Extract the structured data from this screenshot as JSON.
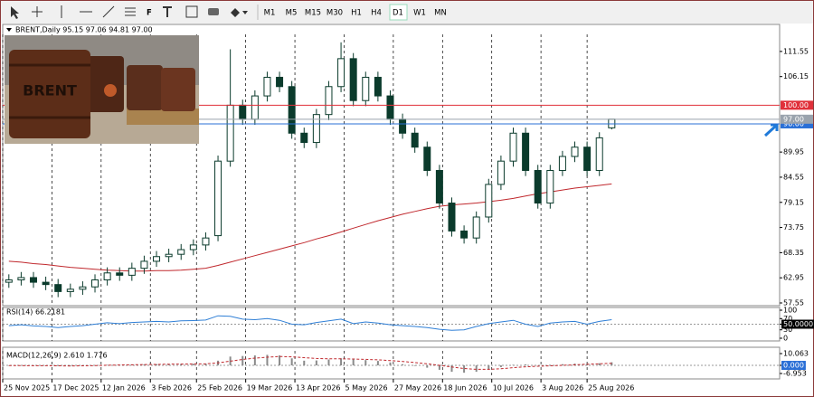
{
  "toolbar": {
    "timeframes": [
      "M1",
      "M5",
      "M15",
      "M30",
      "H1",
      "H4",
      "D1",
      "W1",
      "MN"
    ]
  },
  "chart_data": [
    {
      "type": "candlestick",
      "title": "BRENT,Daily 95.15 97.06 94.81 97.00",
      "image_text": "BRENT",
      "color": "#0b3b2c",
      "x": [
        2,
        6,
        10,
        14,
        18,
        22,
        26,
        30,
        34,
        38,
        42,
        46,
        50,
        54,
        58,
        62,
        66,
        70,
        74,
        78,
        82,
        86,
        90,
        94,
        98,
        102,
        106,
        110,
        114,
        118,
        122,
        126,
        130,
        134,
        138,
        142,
        146,
        150,
        154,
        158,
        162,
        166,
        170,
        174,
        178,
        182,
        186,
        190,
        194,
        198
      ],
      "open": [
        62.0,
        62.5,
        63.0,
        62.0,
        61.5,
        60.0,
        60.5,
        61.0,
        62.5,
        64.0,
        63.5,
        65.0,
        66.5,
        67.5,
        68.0,
        69.0,
        70.0,
        72.0,
        88.0,
        100.0,
        97.0,
        102.0,
        106.0,
        104.0,
        94.0,
        92.0,
        98.0,
        104.0,
        110.0,
        101.0,
        106.0,
        102.0,
        97.0,
        94.0,
        91.0,
        86.0,
        79.0,
        73.0,
        71.5,
        76.0,
        83.0,
        88.0,
        94.0,
        86.0,
        79.0,
        86.0,
        89.0,
        91.0,
        86.0,
        95.15
      ],
      "high": [
        63.7,
        64.2,
        64.2,
        63.2,
        62.7,
        61.7,
        62.2,
        63.7,
        65.2,
        65.2,
        66.2,
        67.7,
        68.7,
        69.2,
        70.2,
        71.2,
        72.7,
        89.2,
        112.0,
        101.2,
        103.2,
        107.2,
        107.2,
        105.2,
        95.2,
        99.2,
        105.2,
        113.5,
        111.2,
        107.2,
        107.2,
        103.2,
        98.2,
        95.2,
        92.2,
        87.2,
        80.2,
        74.2,
        77.2,
        84.2,
        89.2,
        95.2,
        95.2,
        87.2,
        87.2,
        90.2,
        92.2,
        92.2,
        94.2,
        97.06
      ],
      "low": [
        60.8,
        61.3,
        60.8,
        60.3,
        58.8,
        58.8,
        59.3,
        59.8,
        61.3,
        62.3,
        62.3,
        63.8,
        65.3,
        66.3,
        66.8,
        67.8,
        68.8,
        70.8,
        86.8,
        95.8,
        95.8,
        100.8,
        102.8,
        92.8,
        90.8,
        90.8,
        96.8,
        102.8,
        99.8,
        99.8,
        100.8,
        95.8,
        92.8,
        89.8,
        84.8,
        77.8,
        71.8,
        70.3,
        70.3,
        74.8,
        81.8,
        86.8,
        84.8,
        77.8,
        77.8,
        84.8,
        87.8,
        84.8,
        84.8,
        94.81
      ],
      "close": [
        62.5,
        63.0,
        62.0,
        61.5,
        60.0,
        60.5,
        61.0,
        62.5,
        64.0,
        63.5,
        65.0,
        66.5,
        67.5,
        68.0,
        69.0,
        70.0,
        71.5,
        88.0,
        100.0,
        97.0,
        102.0,
        106.0,
        104.0,
        94.0,
        92.0,
        98.0,
        104.0,
        110.0,
        101.0,
        106.0,
        102.0,
        97.0,
        94.0,
        91.0,
        86.0,
        79.0,
        73.0,
        71.5,
        76.0,
        83.0,
        88.0,
        94.0,
        86.0,
        79.0,
        86.0,
        89.0,
        91.0,
        86.0,
        93.0,
        97.0
      ],
      "overlay": {
        "color": "#c0282d",
        "values": [
          66.5,
          66.3,
          66.0,
          65.8,
          65.5,
          65.2,
          65.0,
          64.8,
          64.6,
          64.5,
          64.4,
          64.4,
          64.5,
          64.5,
          64.6,
          64.8,
          65.0,
          65.6,
          66.3,
          67.0,
          67.7,
          68.4,
          69.1,
          69.8,
          70.5,
          71.3,
          72.0,
          72.8,
          73.6,
          74.4,
          75.2,
          75.9,
          76.6,
          77.2,
          77.8,
          78.3,
          78.6,
          78.8,
          79.0,
          79.3,
          79.6,
          80.0,
          80.5,
          81.0,
          81.4,
          81.8,
          82.2,
          82.5,
          82.8,
          83.1
        ]
      },
      "xlim": [
        0,
        252.6
      ],
      "ylim": [
        56.97,
        117.35
      ],
      "yticks": [
        57.55,
        62.95,
        68.35,
        73.75,
        79.15,
        84.55,
        89.95,
        106.15,
        111.55
      ],
      "xticks": [
        {
          "value": 0,
          "label": "25 Nov 2025"
        },
        {
          "value": 16,
          "label": "17 Dec 2025"
        },
        {
          "value": 32,
          "label": "12 Jan 2026"
        },
        {
          "value": 48,
          "label": "3 Feb 2026"
        },
        {
          "value": 63,
          "label": "25 Feb 2026"
        },
        {
          "value": 79,
          "label": "19 Mar 2026"
        },
        {
          "value": 95,
          "label": "13 Apr 2026"
        },
        {
          "value": 111,
          "label": "5 May 2026"
        },
        {
          "value": 127,
          "label": "27 May 2026"
        },
        {
          "value": 143,
          "label": "18 Jun 2026"
        },
        {
          "value": 159,
          "label": "10 Jul 2026"
        },
        {
          "value": 175,
          "label": "3 Aug 2026"
        },
        {
          "value": 190,
          "label": "25 Aug 2026"
        }
      ],
      "grid": true,
      "hlines": [
        {
          "value": 100,
          "label": "100.00",
          "color": "#e0303a"
        },
        {
          "value": 96,
          "label": "96.00",
          "color": "#2a6fd6"
        }
      ],
      "current_price": {
        "value": 97,
        "label": "97.00",
        "color": "#9aa3ad"
      }
    },
    {
      "type": "line",
      "title": "RSI(14) 66.2181",
      "color": "#2f7fd6",
      "values": [
        45,
        48,
        44,
        42,
        38,
        42,
        45,
        50,
        55,
        52,
        56,
        58,
        60,
        58,
        62,
        63,
        65,
        80,
        78,
        68,
        66,
        70,
        64,
        50,
        48,
        56,
        62,
        68,
        52,
        58,
        54,
        48,
        45,
        42,
        38,
        32,
        28,
        30,
        42,
        52,
        58,
        64,
        50,
        42,
        54,
        58,
        60,
        50,
        60,
        66
      ],
      "ylim": [
        0,
        100
      ],
      "yticks": [
        0,
        30,
        {
          "value": 50,
          "label": "50.0000"
        },
        70,
        100
      ]
    },
    {
      "type": "macd",
      "title": "MACD(12,26,9) 2.610 1.776",
      "color": "#8a8a8a",
      "signal_color": "#c0282d",
      "values": [
        -0.3,
        -0.2,
        -0.3,
        -0.4,
        -0.6,
        -0.5,
        -0.3,
        0.1,
        0.4,
        0.5,
        0.7,
        0.9,
        1.0,
        1.1,
        1.2,
        1.3,
        1.5,
        4.0,
        7.5,
        8.0,
        8.5,
        9.0,
        8.5,
        6.0,
        4.0,
        4.2,
        5.0,
        6.0,
        5.0,
        4.5,
        3.8,
        2.5,
        1.0,
        -0.5,
        -2.0,
        -3.8,
        -5.5,
        -6.3,
        -5.5,
        -3.5,
        -1.5,
        0.5,
        0.8,
        0.0,
        0.5,
        1.0,
        1.5,
        1.2,
        1.8,
        2.61
      ],
      "signal": [
        -0.2,
        -0.2,
        -0.3,
        -0.3,
        -0.4,
        -0.5,
        -0.4,
        -0.2,
        0.1,
        0.3,
        0.5,
        0.7,
        0.8,
        1.0,
        1.1,
        1.2,
        1.3,
        2.2,
        3.6,
        5.0,
        6.2,
        7.0,
        7.6,
        7.3,
        6.6,
        5.9,
        5.6,
        5.6,
        5.4,
        5.1,
        4.7,
        4.1,
        3.3,
        2.4,
        1.3,
        0.0,
        -1.4,
        -2.7,
        -3.4,
        -3.4,
        -2.9,
        -2.0,
        -1.2,
        -0.8,
        -0.4,
        0.0,
        0.5,
        0.9,
        1.3,
        1.776
      ],
      "ylim": [
        -6.953,
        10.063
      ],
      "yticks": [
        -6.953,
        {
          "value": 0,
          "label": "0.000"
        },
        10.063
      ]
    }
  ]
}
